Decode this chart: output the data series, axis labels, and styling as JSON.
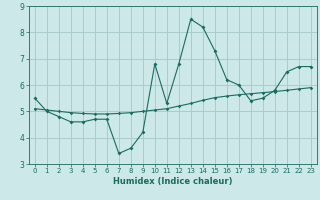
{
  "xlabel": "Humidex (Indice chaleur)",
  "background_color": "#cce8e8",
  "grid_color": "#aacccc",
  "line_color": "#1a6b60",
  "xlim": [
    -0.5,
    23.5
  ],
  "ylim": [
    3,
    9
  ],
  "yticks": [
    3,
    4,
    5,
    6,
    7,
    8,
    9
  ],
  "xticks": [
    0,
    1,
    2,
    3,
    4,
    5,
    6,
    7,
    8,
    9,
    10,
    11,
    12,
    13,
    14,
    15,
    16,
    17,
    18,
    19,
    20,
    21,
    22,
    23
  ],
  "series1_x": [
    0,
    1,
    2,
    3,
    4,
    5,
    6,
    7,
    8,
    9,
    10,
    11,
    12,
    13,
    14,
    15,
    16,
    17,
    18,
    19,
    20,
    21,
    22,
    23
  ],
  "series1_y": [
    5.5,
    5.0,
    4.8,
    4.6,
    4.6,
    4.7,
    4.7,
    3.4,
    3.6,
    4.2,
    6.8,
    5.3,
    6.8,
    8.5,
    8.2,
    7.3,
    6.2,
    6.0,
    5.4,
    5.5,
    5.8,
    6.5,
    6.7,
    6.7
  ],
  "series2_x": [
    0,
    1,
    2,
    3,
    4,
    5,
    6,
    7,
    8,
    9,
    10,
    11,
    12,
    13,
    14,
    15,
    16,
    17,
    18,
    19,
    20,
    21,
    22,
    23
  ],
  "series2_y": [
    5.1,
    5.05,
    5.0,
    4.95,
    4.92,
    4.9,
    4.9,
    4.92,
    4.95,
    5.0,
    5.05,
    5.1,
    5.2,
    5.3,
    5.42,
    5.52,
    5.58,
    5.63,
    5.67,
    5.71,
    5.75,
    5.8,
    5.85,
    5.9
  ]
}
